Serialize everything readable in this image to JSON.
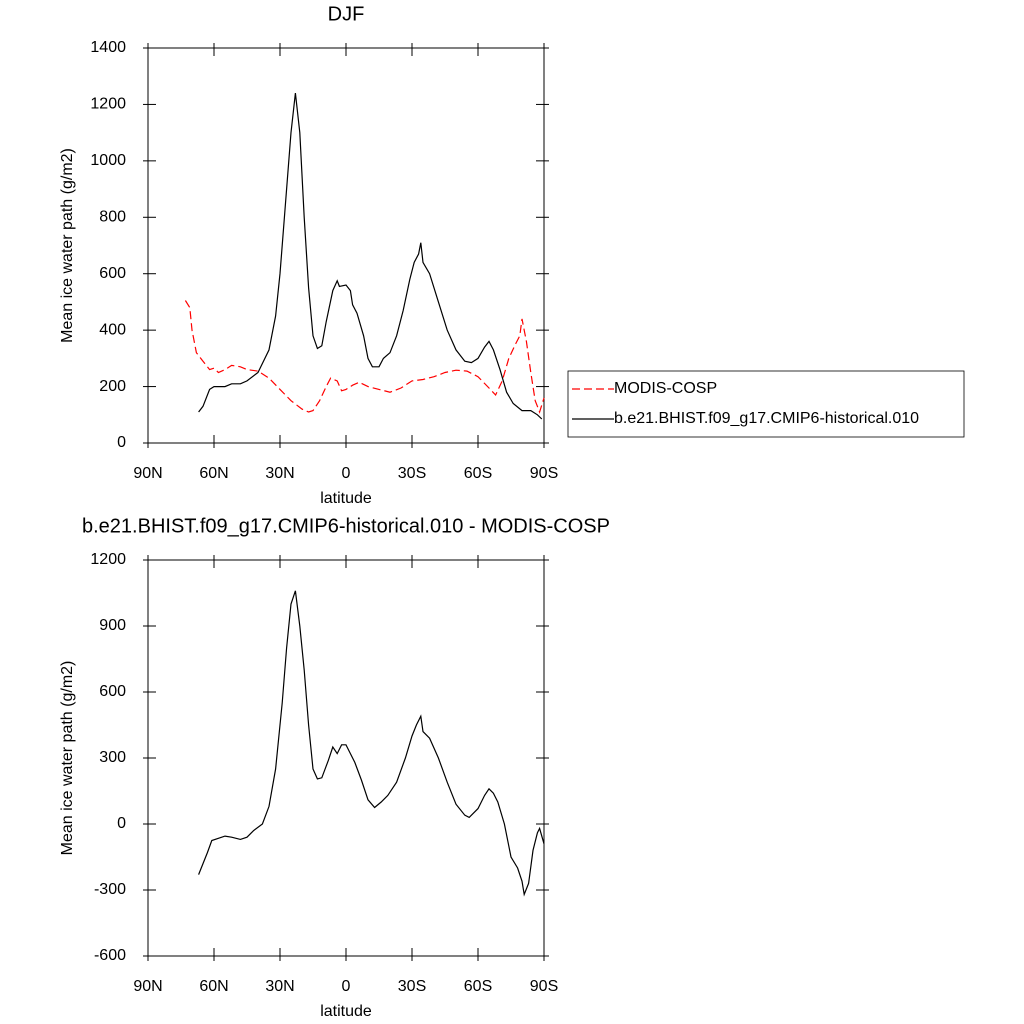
{
  "chart_data": [
    {
      "type": "line",
      "title": "DJF",
      "xlabel": "latitude",
      "ylabel": "Mean ice water path (g/m2)",
      "xlim": [
        90,
        -90
      ],
      "xticks": [
        {
          "value": 90,
          "label": "90N"
        },
        {
          "value": 60,
          "label": "60N"
        },
        {
          "value": 30,
          "label": "30N"
        },
        0,
        {
          "value": -30,
          "label": "30S"
        },
        {
          "value": -60,
          "label": "60S"
        },
        {
          "value": -90,
          "label": "90S"
        }
      ],
      "ylim": [
        0,
        1400
      ],
      "yticks": [
        0,
        200,
        400,
        600,
        800,
        1000,
        1200,
        1400
      ],
      "legend": "right",
      "series": [
        {
          "name": "MODIS-COSP",
          "color": "#ff0000",
          "style": "dashed",
          "x": [
            73,
            71,
            70,
            68,
            65,
            62,
            60,
            58,
            55,
            52,
            48,
            45,
            40,
            35,
            30,
            25,
            20,
            17,
            15,
            12,
            9,
            7,
            4,
            2,
            0,
            -3,
            -6,
            -10,
            -15,
            -20,
            -25,
            -30,
            -35,
            -40,
            -45,
            -50,
            -55,
            -60,
            -65,
            -68,
            -71,
            -74,
            -77,
            -79,
            -80,
            -82,
            -84,
            -86,
            -88,
            -90
          ],
          "values": [
            505,
            480,
            400,
            320,
            290,
            260,
            265,
            250,
            260,
            275,
            270,
            260,
            255,
            230,
            190,
            150,
            120,
            110,
            115,
            150,
            200,
            230,
            220,
            185,
            190,
            205,
            215,
            200,
            190,
            180,
            195,
            220,
            225,
            235,
            250,
            258,
            255,
            235,
            195,
            170,
            220,
            300,
            350,
            380,
            440,
            360,
            250,
            150,
            110,
            160
          ]
        },
        {
          "name": "b.e21.BHIST.f09_g17.CMIP6-historical.010",
          "color": "#000000",
          "style": "solid",
          "x": [
            67,
            65,
            62,
            60,
            55,
            52,
            48,
            45,
            40,
            35,
            32,
            30,
            28,
            25,
            23,
            21,
            19,
            17,
            15,
            13,
            11,
            9,
            6,
            4,
            3,
            0,
            -2,
            -3,
            -5,
            -8,
            -10,
            -12,
            -15,
            -17,
            -20,
            -23,
            -26,
            -29,
            -31,
            -33,
            -34,
            -35,
            -38,
            -42,
            -46,
            -50,
            -54,
            -57,
            -60,
            -63,
            -65,
            -67,
            -70,
            -73,
            -76,
            -80,
            -84,
            -87,
            -89
          ],
          "values": [
            110,
            130,
            190,
            200,
            200,
            210,
            210,
            220,
            250,
            330,
            450,
            600,
            800,
            1100,
            1240,
            1100,
            800,
            550,
            380,
            335,
            345,
            430,
            540,
            575,
            555,
            560,
            540,
            490,
            460,
            380,
            300,
            270,
            270,
            300,
            320,
            380,
            470,
            580,
            640,
            670,
            710,
            640,
            600,
            500,
            400,
            330,
            290,
            285,
            300,
            340,
            360,
            330,
            260,
            180,
            140,
            115,
            115,
            100,
            85
          ]
        }
      ]
    },
    {
      "type": "line",
      "title": "b.e21.BHIST.f09_g17.CMIP6-historical.010 - MODIS-COSP",
      "xlabel": "latitude",
      "ylabel": "Mean ice water path (g/m2)",
      "xlim": [
        90,
        -90
      ],
      "xticks": [
        {
          "value": 90,
          "label": "90N"
        },
        {
          "value": 60,
          "label": "60N"
        },
        {
          "value": 30,
          "label": "30N"
        },
        0,
        {
          "value": -30,
          "label": "30S"
        },
        {
          "value": -60,
          "label": "60S"
        },
        {
          "value": -90,
          "label": "90S"
        }
      ],
      "ylim": [
        -600,
        1200
      ],
      "yticks": [
        -600,
        -300,
        0,
        300,
        600,
        900,
        1200
      ],
      "series": [
        {
          "color": "#000000",
          "style": "solid",
          "x": [
            67,
            65,
            63,
            61,
            58,
            55,
            52,
            48,
            45,
            42,
            38,
            35,
            32,
            29,
            27,
            25,
            23,
            21,
            19,
            17,
            15,
            13,
            11,
            8,
            6,
            4,
            2,
            0,
            -2,
            -4,
            -7,
            -10,
            -13,
            -16,
            -19,
            -23,
            -27,
            -30,
            -32,
            -34,
            -35,
            -38,
            -42,
            -46,
            -50,
            -54,
            -56,
            -60,
            -63,
            -65,
            -67,
            -69,
            -72,
            -75,
            -78,
            -80,
            -81,
            -83,
            -85,
            -87,
            -88,
            -90
          ],
          "values": [
            -230,
            -180,
            -130,
            -75,
            -65,
            -55,
            -60,
            -70,
            -60,
            -30,
            0,
            80,
            250,
            550,
            800,
            1000,
            1060,
            900,
            700,
            450,
            250,
            205,
            210,
            290,
            350,
            320,
            360,
            360,
            320,
            280,
            200,
            110,
            75,
            100,
            130,
            190,
            300,
            400,
            450,
            490,
            420,
            390,
            300,
            190,
            90,
            40,
            30,
            70,
            130,
            160,
            140,
            100,
            0,
            -150,
            -200,
            -260,
            -320,
            -270,
            -120,
            -40,
            -20,
            -90
          ]
        }
      ]
    }
  ]
}
